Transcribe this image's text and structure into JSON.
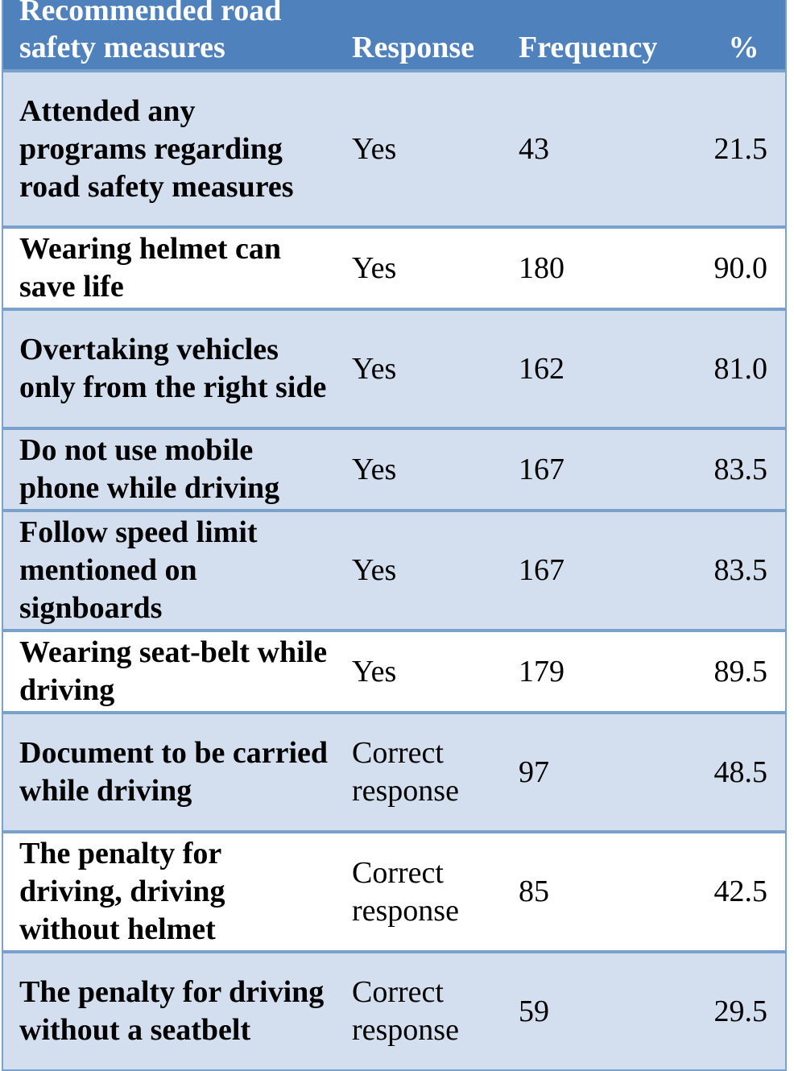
{
  "table": {
    "headers": {
      "measure": "Recommended road safety measures",
      "response": "Response",
      "frequency": "Frequency",
      "percent": "%"
    },
    "rows": [
      {
        "measure": "Attended any programs regarding road safety measures",
        "response": "Yes",
        "frequency": "43",
        "percent": "21.5"
      },
      {
        "measure": "Wearing helmet can save life",
        "response": "Yes",
        "frequency": "180",
        "percent": "90.0"
      },
      {
        "measure": "Overtaking vehicles only from the right side",
        "response": "Yes",
        "frequency": "162",
        "percent": "81.0"
      },
      {
        "measure": "Do not use mobile phone while driving",
        "response": "Yes",
        "frequency": "167",
        "percent": "83.5"
      },
      {
        "measure": "Follow speed limit mentioned on signboards",
        "response": "Yes",
        "frequency": "167",
        "percent": "83.5"
      },
      {
        "measure": "Wearing seat-belt while driving",
        "response": "Yes",
        "frequency": "179",
        "percent": "89.5"
      },
      {
        "measure": "Document to be carried while driving",
        "response": "Correct response",
        "frequency": "97",
        "percent": "48.5"
      },
      {
        "measure": "The penalty for driving, driving without helmet",
        "response": "Correct response",
        "frequency": "85",
        "percent": "42.5"
      },
      {
        "measure": "The penalty for driving without a seatbelt",
        "response": "Correct response",
        "frequency": "59",
        "percent": "29.5"
      }
    ]
  },
  "colors": {
    "header_bg": "#4f81bd",
    "band_bg": "#d3dfee",
    "border": "#7aa0cc"
  }
}
